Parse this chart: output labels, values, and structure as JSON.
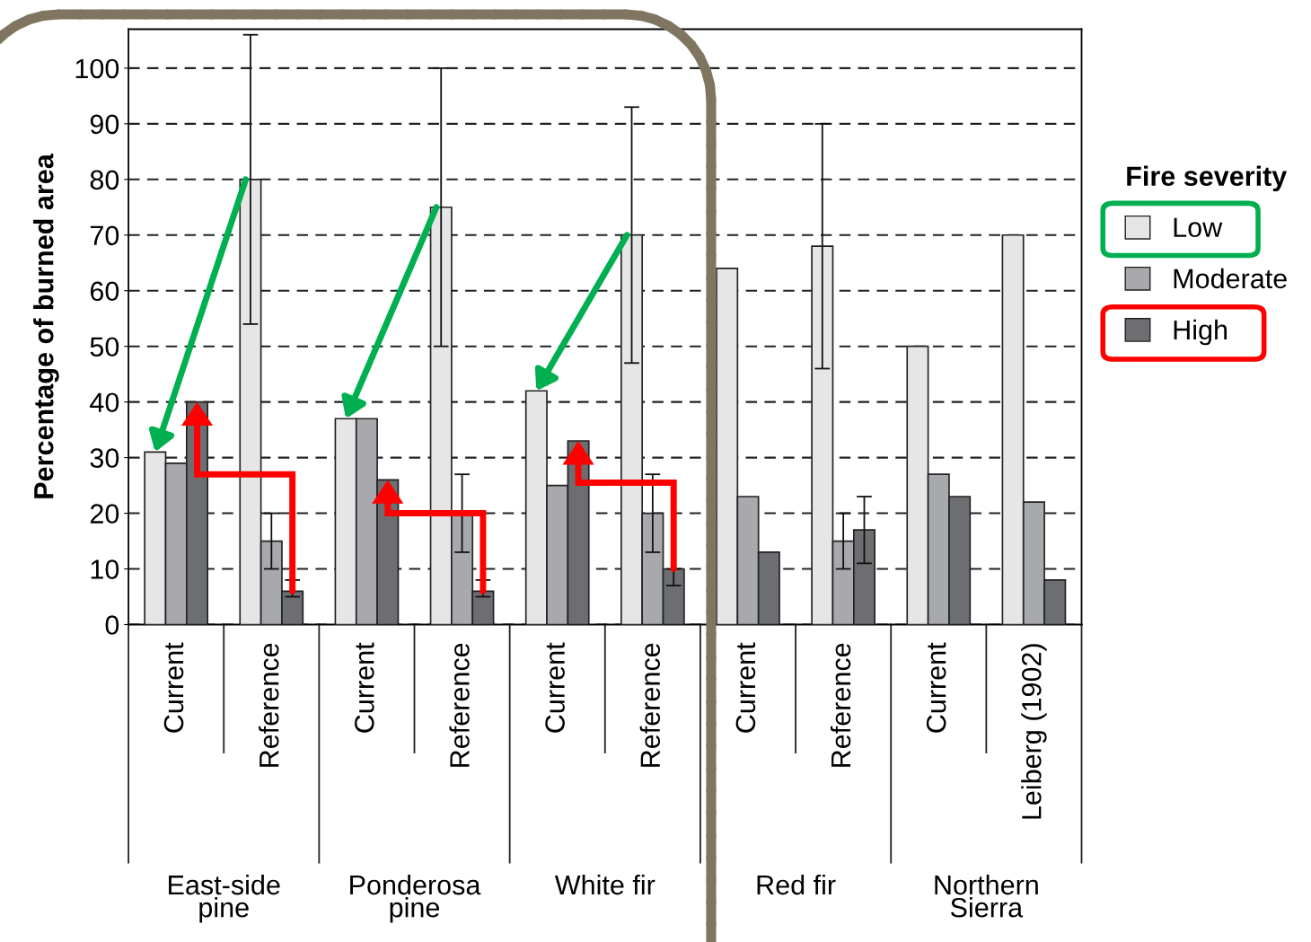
{
  "chart_data": {
    "type": "bar",
    "ylabel": "Percentage of burned area",
    "legend_title": "Fire severity",
    "categories": [
      "Current",
      "Reference",
      "Current",
      "Reference",
      "Current",
      "Reference",
      "Current",
      "Reference",
      "Current",
      "Leiberg (1902)"
    ],
    "series": [
      {
        "name": "Low",
        "color": "#e6e6e6",
        "values": [
          31,
          80,
          37,
          75,
          42,
          70,
          64,
          68,
          50,
          70
        ],
        "errors": [
          null,
          [
            54,
            106
          ],
          null,
          [
            50,
            100
          ],
          null,
          [
            47,
            93
          ],
          null,
          [
            46,
            90
          ],
          null,
          null
        ]
      },
      {
        "name": "Moderate",
        "color": "#a8a9ad",
        "values": [
          29,
          15,
          37,
          20,
          25,
          20,
          23,
          15,
          27,
          22
        ],
        "errors": [
          null,
          [
            10,
            20
          ],
          null,
          [
            13,
            27
          ],
          null,
          [
            13,
            27
          ],
          null,
          [
            10,
            20
          ],
          null,
          null
        ]
      },
      {
        "name": "High",
        "color": "#6d6e71",
        "values": [
          40,
          6,
          26,
          6,
          33,
          10,
          13,
          17,
          23,
          8
        ],
        "errors": [
          null,
          [
            5,
            8
          ],
          null,
          [
            5,
            8
          ],
          null,
          [
            7,
            10
          ],
          null,
          [
            11,
            23
          ],
          null,
          null
        ]
      }
    ],
    "ylim": [
      0,
      107
    ],
    "yticks": [
      0,
      10,
      20,
      30,
      40,
      50,
      60,
      70,
      80,
      90,
      100
    ],
    "grid": "y",
    "legend": "right",
    "annotations": [
      "East-side\npine",
      "Ponderosa\npine",
      "White fir",
      "Red fir",
      "Northern\nSierra"
    ]
  }
}
